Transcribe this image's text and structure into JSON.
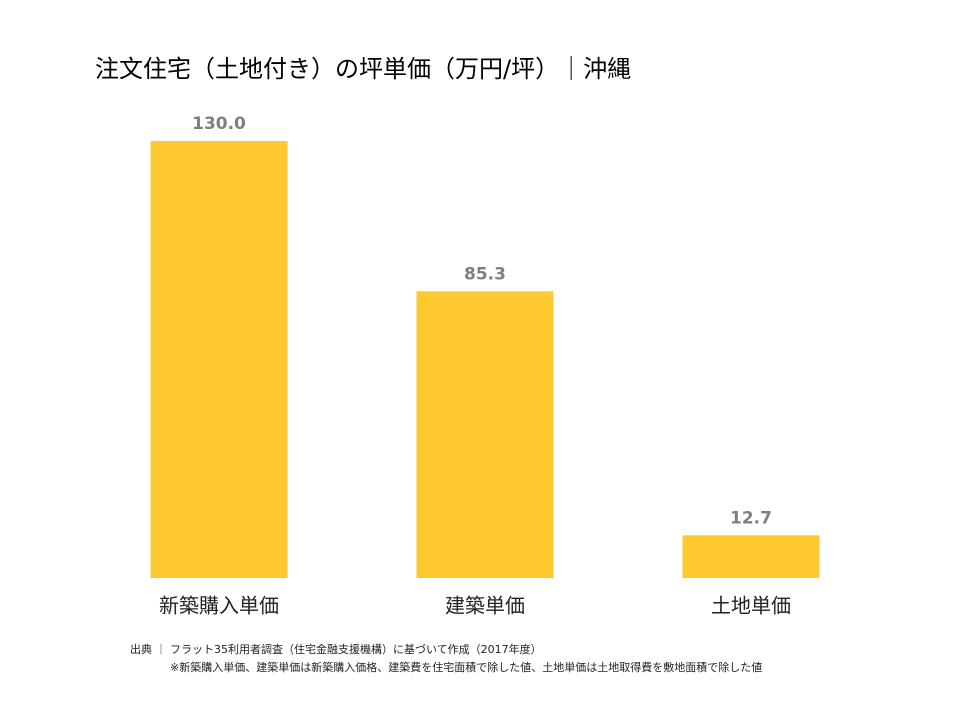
{
  "chart_data": {
    "type": "bar",
    "title": "注文住宅（土地付き）の坪単価（万円/坪）｜沖縄",
    "categories": [
      "新築購入単価",
      "建築単価",
      "土地単価"
    ],
    "values": [
      130.0,
      85.3,
      12.7
    ],
    "value_labels": [
      "130.0",
      "85.3",
      "12.7"
    ],
    "color": "#ffca2f",
    "source": "出典 ｜ フラット35利用者調査（住宅金融支援機構）に基づいて作成（2017年度）",
    "note": "※新築購入単価、建築単価は新築購入価格、建築費を住宅面積で除した値、土地単価は土地取得費を敷地面積で除した値"
  }
}
